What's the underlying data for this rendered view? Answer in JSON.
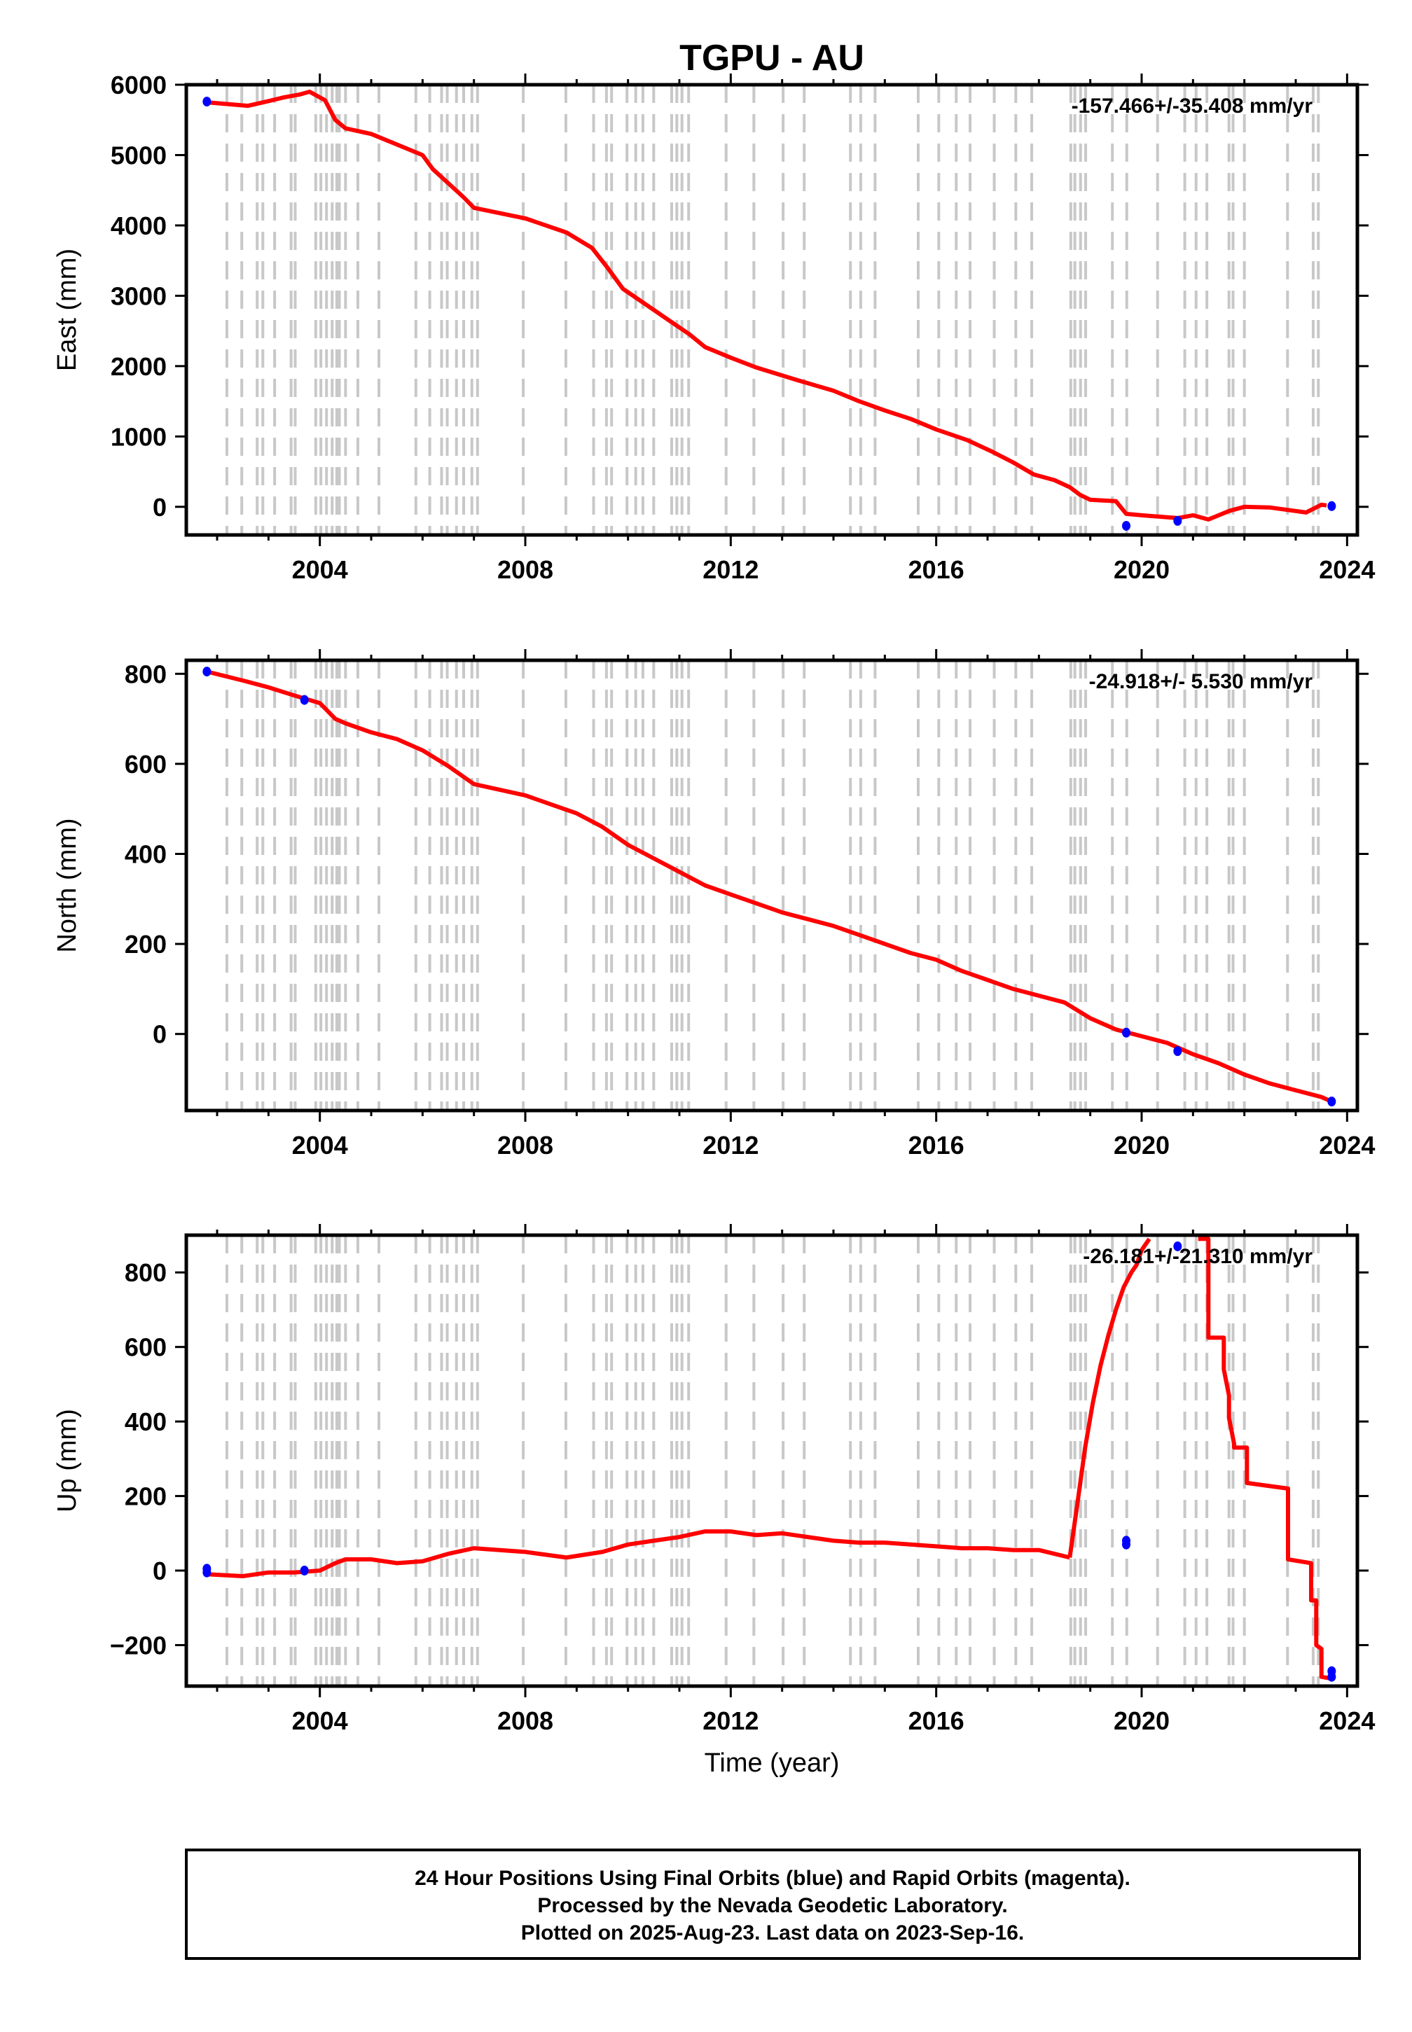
{
  "title": "TGPU - AU",
  "footer": {
    "lines": [
      "24 Hour Positions Using Final Orbits (blue) and Rapid Orbits (magenta).",
      "Processed by the Nevada Geodetic Laboratory.",
      "Plotted on 2025-Aug-23. Last data on 2023-Sep-16."
    ]
  },
  "colors": {
    "series": "#ff0000",
    "final_orbits": "#0000ff",
    "offsets": "#c8c8c8",
    "frame": "#000000"
  },
  "chart_data": [
    {
      "type": "line",
      "name": "east",
      "ylabel": "East (mm)",
      "xlabel": "",
      "rate": "-157.466+/-35.408 mm/yr",
      "xlim": [
        2001.4,
        2024.2
      ],
      "ylim": [
        -400,
        6000
      ],
      "xticks": [
        2004,
        2008,
        2012,
        2016,
        2020,
        2024
      ],
      "yticks": [
        0,
        1000,
        2000,
        3000,
        4000,
        5000,
        6000
      ],
      "series": [
        {
          "x": [
            2001.8,
            2002.6,
            2002.9,
            2003.3,
            2003.6,
            2003.8,
            2004.1,
            2004.3,
            2004.5,
            2005.0,
            2005.5,
            2006.0,
            2006.2,
            2006.5,
            2006.8,
            2007.0,
            2008.0,
            2008.8,
            2009.3,
            2009.6,
            2009.9,
            2010.3,
            2010.8,
            2011.2,
            2011.5,
            2012.0,
            2012.5,
            2013.3,
            2014.0,
            2014.5,
            2015.0,
            2015.5,
            2016.0,
            2016.6,
            2017.1,
            2017.5,
            2017.9,
            2018.3,
            2018.6,
            2018.8,
            2019.0,
            2019.5,
            2019.7,
            2020.0,
            2020.7,
            2021.0,
            2021.3,
            2021.5,
            2021.7,
            2022.0,
            2022.5,
            2022.9,
            2023.2,
            2023.5,
            2023.6
          ],
          "y": [
            5750,
            5700,
            5750,
            5820,
            5860,
            5900,
            5780,
            5500,
            5380,
            5300,
            5150,
            5000,
            4800,
            4600,
            4400,
            4250,
            4100,
            3900,
            3680,
            3400,
            3100,
            2900,
            2650,
            2450,
            2270,
            2120,
            1980,
            1800,
            1650,
            1500,
            1370,
            1250,
            1100,
            950,
            780,
            630,
            460,
            380,
            280,
            170,
            100,
            80,
            -100,
            -120,
            -160,
            -120,
            -180,
            -120,
            -60,
            0,
            -10,
            -50,
            -80,
            30,
            20
          ]
        }
      ],
      "final_points": [
        {
          "x": 2001.8,
          "y": 5760
        },
        {
          "x": 2019.7,
          "y": -270
        },
        {
          "x": 2020.7,
          "y": -200
        },
        {
          "x": 2023.7,
          "y": 10
        }
      ]
    },
    {
      "type": "line",
      "name": "north",
      "ylabel": "North (mm)",
      "xlabel": "",
      "rate": "-24.918+/- 5.530 mm/yr",
      "xlim": [
        2001.4,
        2024.2
      ],
      "ylim": [
        -170,
        830
      ],
      "xticks": [
        2004,
        2008,
        2012,
        2016,
        2020,
        2024
      ],
      "yticks": [
        0,
        200,
        400,
        600,
        800
      ],
      "series": [
        {
          "x": [
            2001.8,
            2002.5,
            2003.0,
            2003.5,
            2004.0,
            2004.3,
            2004.5,
            2005.0,
            2005.5,
            2006.0,
            2006.5,
            2007.0,
            2008.0,
            2008.5,
            2009.0,
            2009.5,
            2010.0,
            2010.5,
            2011.0,
            2011.5,
            2012.0,
            2012.5,
            2013.0,
            2013.5,
            2014.0,
            2014.5,
            2015.0,
            2015.5,
            2016.0,
            2016.5,
            2017.0,
            2017.5,
            2018.0,
            2018.5,
            2019.0,
            2019.5,
            2020.0,
            2020.5,
            2021.0,
            2021.5,
            2022.0,
            2022.5,
            2023.0,
            2023.5,
            2023.7
          ],
          "y": [
            805,
            785,
            770,
            752,
            735,
            700,
            690,
            670,
            655,
            630,
            595,
            555,
            530,
            510,
            490,
            460,
            420,
            390,
            360,
            330,
            310,
            290,
            270,
            255,
            240,
            220,
            200,
            180,
            165,
            140,
            120,
            100,
            85,
            70,
            35,
            10,
            -5,
            -20,
            -45,
            -65,
            -90,
            -110,
            -125,
            -140,
            -150
          ]
        }
      ],
      "final_points": [
        {
          "x": 2001.8,
          "y": 805
        },
        {
          "x": 2003.7,
          "y": 742
        },
        {
          "x": 2019.7,
          "y": 3
        },
        {
          "x": 2020.7,
          "y": -38
        },
        {
          "x": 2023.7,
          "y": -150
        }
      ]
    },
    {
      "type": "line",
      "name": "up",
      "ylabel": "Up (mm)",
      "xlabel": "Time (year)",
      "rate": "-26.181+/-21.310 mm/yr",
      "xlim": [
        2001.4,
        2024.2
      ],
      "ylim": [
        -310,
        900
      ],
      "xticks": [
        2004,
        2008,
        2012,
        2016,
        2020,
        2024
      ],
      "yticks": [
        -200,
        0,
        200,
        400,
        600,
        800
      ],
      "series": [
        {
          "x": [
            2001.8,
            2002.5,
            2003.0,
            2003.5,
            2004.0,
            2004.3,
            2004.5,
            2005.0,
            2005.5,
            2006.0,
            2006.5,
            2007.0,
            2008.0,
            2008.8,
            2009.5,
            2010.0,
            2010.5,
            2011.0,
            2011.5,
            2012.0,
            2012.5,
            2013.0,
            2013.5,
            2014.0,
            2014.5,
            2015.0,
            2015.5,
            2016.0,
            2016.5,
            2017.0,
            2017.5,
            2018.0,
            2018.6
          ],
          "y": [
            -10,
            -15,
            -5,
            -5,
            0,
            20,
            30,
            30,
            20,
            25,
            45,
            60,
            50,
            35,
            50,
            70,
            80,
            90,
            105,
            105,
            95,
            100,
            90,
            80,
            75,
            75,
            70,
            65,
            60,
            60,
            55,
            55,
            35
          ]
        },
        {
          "x": [
            2018.6,
            2018.75,
            2018.9,
            2019.05,
            2019.2,
            2019.35,
            2019.5,
            2019.65,
            2019.8,
            2019.9,
            2020.0,
            2020.15
          ],
          "y": [
            35,
            180,
            330,
            450,
            550,
            630,
            700,
            760,
            800,
            820,
            860,
            890
          ]
        },
        {
          "x": [
            2021.1,
            2021.3,
            2021.3,
            2021.6,
            2021.6,
            2021.7,
            2021.7,
            2021.8,
            2021.8,
            2022.05,
            2022.05,
            2022.85,
            2022.85,
            2023.3,
            2023.3,
            2023.4,
            2023.4,
            2023.5,
            2023.5,
            2023.7
          ],
          "y": [
            890,
            890,
            625,
            625,
            540,
            470,
            410,
            340,
            330,
            330,
            235,
            220,
            30,
            20,
            -80,
            -80,
            -200,
            -210,
            -285,
            -290
          ]
        }
      ],
      "final_points": [
        {
          "x": 2001.8,
          "y": 5
        },
        {
          "x": 2001.8,
          "y": -5
        },
        {
          "x": 2003.7,
          "y": 0
        },
        {
          "x": 2019.7,
          "y": 70
        },
        {
          "x": 2019.7,
          "y": 80
        },
        {
          "x": 2020.7,
          "y": 870
        },
        {
          "x": 2023.7,
          "y": -270
        },
        {
          "x": 2023.7,
          "y": -285
        }
      ]
    }
  ],
  "offset_years": [
    2002.19,
    2002.48,
    2002.78,
    2002.89,
    2003.12,
    2003.44,
    2003.52,
    2003.92,
    2004.02,
    2004.13,
    2004.24,
    2004.33,
    2004.38,
    2004.5,
    2004.74,
    2005.15,
    2005.87,
    2006.14,
    2006.37,
    2006.48,
    2006.66,
    2006.8,
    2006.96,
    2007.07,
    2007.96,
    2008.79,
    2009.33,
    2009.58,
    2009.68,
    2009.98,
    2010.15,
    2010.29,
    2010.5,
    2010.85,
    2010.95,
    2011.05,
    2011.18,
    2011.91,
    2012.45,
    2013.02,
    2013.43,
    2014.33,
    2014.53,
    2014.81,
    2015.65,
    2016.05,
    2016.39,
    2016.66,
    2017.13,
    2017.55,
    2017.86,
    2018.62,
    2018.7,
    2018.81,
    2018.91,
    2019.43,
    2019.71,
    2020.31,
    2020.84,
    2021.06,
    2021.27,
    2021.7,
    2021.78,
    2022.0,
    2022.84,
    2023.34,
    2023.44
  ]
}
